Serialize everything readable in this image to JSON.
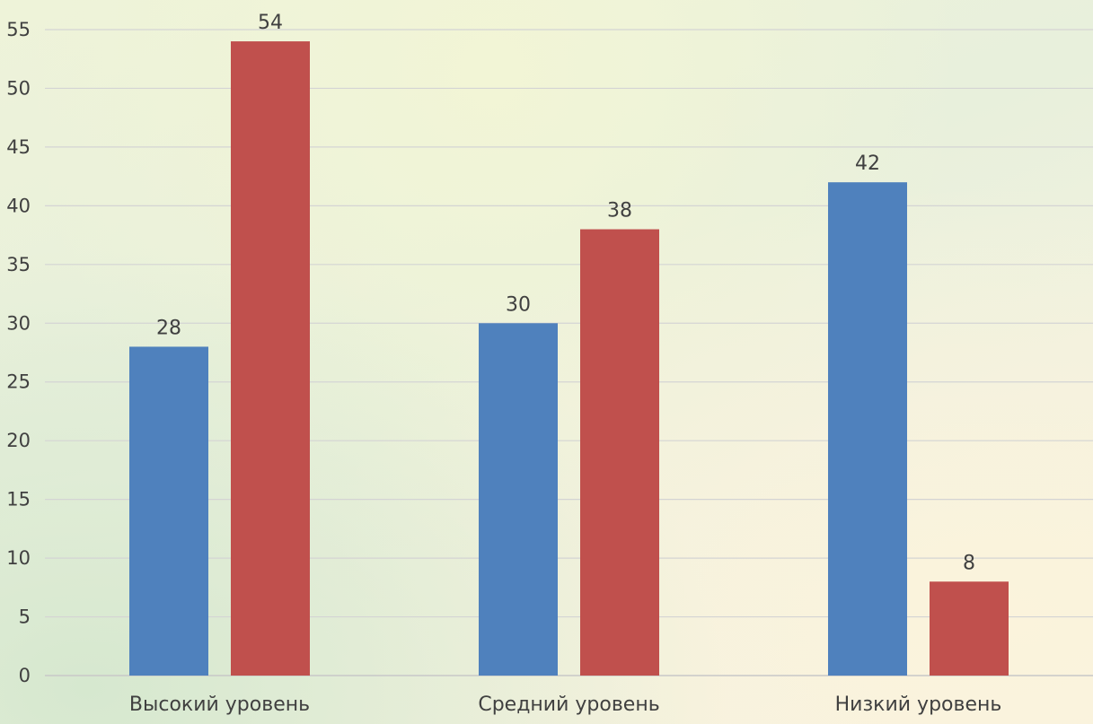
{
  "chart_data": {
    "type": "bar",
    "categories": [
      "Высокий уровень",
      "Средний уровень",
      "Низкий уровень"
    ],
    "series": [
      {
        "values": [
          28,
          30,
          42
        ],
        "color": "#4f81bd"
      },
      {
        "values": [
          54,
          38,
          8
        ],
        "color": "#c0504d"
      }
    ],
    "ylim": [
      0,
      55
    ],
    "yticks": [
      0,
      5,
      10,
      15,
      20,
      25,
      30,
      35,
      40,
      45,
      50,
      55
    ],
    "grid": true,
    "legend": "none",
    "data_labels": true
  }
}
